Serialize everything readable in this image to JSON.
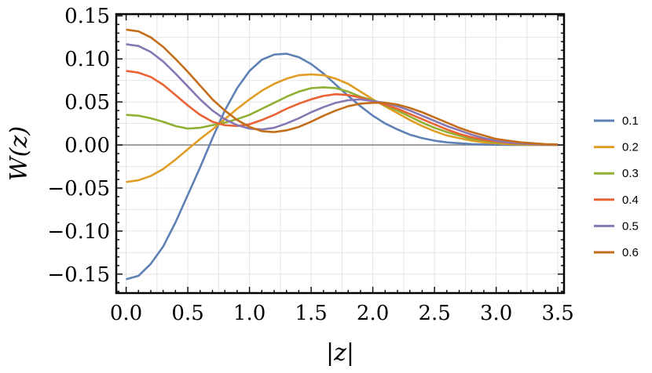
{
  "chart_data": {
    "type": "line",
    "title": "",
    "xlabel": "|z|",
    "ylabel": "W(z)",
    "xlim": [
      -0.08,
      3.55
    ],
    "ylim": [
      -0.172,
      0.152
    ],
    "x_ticks": [
      {
        "v": 0.0,
        "label": "0.0"
      },
      {
        "v": 0.5,
        "label": "0.5"
      },
      {
        "v": 1.0,
        "label": "1.0"
      },
      {
        "v": 1.5,
        "label": "1.5"
      },
      {
        "v": 2.0,
        "label": "2.0"
      },
      {
        "v": 2.5,
        "label": "2.5"
      },
      {
        "v": 3.0,
        "label": "3.0"
      },
      {
        "v": 3.5,
        "label": "3.5"
      }
    ],
    "y_ticks": [
      {
        "v": 0.15,
        "label": "0.15"
      },
      {
        "v": 0.1,
        "label": "0.10"
      },
      {
        "v": 0.05,
        "label": "0.05"
      },
      {
        "v": 0.0,
        "label": "0.00"
      },
      {
        "v": -0.05,
        "label": "−0.05"
      },
      {
        "v": -0.1,
        "label": "−0.10"
      },
      {
        "v": -0.15,
        "label": "−0.15"
      }
    ],
    "grid": true,
    "legend_position": "right",
    "x": [
      0,
      0.1,
      0.2,
      0.3,
      0.4,
      0.5,
      0.6,
      0.7,
      0.8,
      0.9,
      1.0,
      1.1,
      1.2,
      1.3,
      1.4,
      1.5,
      1.6,
      1.7,
      1.8,
      1.9,
      2.0,
      2.1,
      2.2,
      2.3,
      2.4,
      2.5,
      2.6,
      2.7,
      2.8,
      2.9,
      3.0,
      3.1,
      3.2,
      3.3,
      3.4,
      3.5
    ],
    "series": [
      {
        "name": "0.1",
        "color": "#5E81B5",
        "values": [
          -0.156,
          -0.152,
          -0.138,
          -0.118,
          -0.09,
          -0.058,
          -0.026,
          0.008,
          0.04,
          0.066,
          0.086,
          0.099,
          0.105,
          0.106,
          0.102,
          0.094,
          0.083,
          0.07,
          0.057,
          0.045,
          0.034,
          0.025,
          0.018,
          0.012,
          0.008,
          0.005,
          0.003,
          0.002,
          0.001,
          0.0005,
          0.0002,
          0.0001,
          0,
          0,
          0,
          0
        ]
      },
      {
        "name": "0.2",
        "color": "#E19C24",
        "values": [
          -0.043,
          -0.041,
          -0.036,
          -0.028,
          -0.017,
          -0.005,
          0.007,
          0.018,
          0.03,
          0.042,
          0.053,
          0.063,
          0.071,
          0.077,
          0.081,
          0.082,
          0.081,
          0.077,
          0.071,
          0.062,
          0.053,
          0.045,
          0.037,
          0.029,
          0.022,
          0.016,
          0.011,
          0.008,
          0.005,
          0.003,
          0.002,
          0.001,
          0.0005,
          0.0002,
          0.0001,
          0
        ]
      },
      {
        "name": "0.3",
        "color": "#8FB032",
        "values": [
          0.035,
          0.034,
          0.031,
          0.027,
          0.022,
          0.019,
          0.02,
          0.023,
          0.026,
          0.03,
          0.035,
          0.042,
          0.049,
          0.056,
          0.062,
          0.066,
          0.067,
          0.066,
          0.062,
          0.056,
          0.052,
          0.046,
          0.04,
          0.033,
          0.026,
          0.02,
          0.015,
          0.011,
          0.007,
          0.005,
          0.003,
          0.002,
          0.001,
          0.0007,
          0.0003,
          0.0001
        ]
      },
      {
        "name": "0.4",
        "color": "#EB6235",
        "values": [
          0.086,
          0.084,
          0.079,
          0.07,
          0.058,
          0.046,
          0.035,
          0.027,
          0.023,
          0.022,
          0.024,
          0.029,
          0.035,
          0.042,
          0.048,
          0.053,
          0.057,
          0.059,
          0.058,
          0.055,
          0.051,
          0.047,
          0.042,
          0.036,
          0.03,
          0.024,
          0.018,
          0.013,
          0.009,
          0.006,
          0.004,
          0.0025,
          0.0015,
          0.0008,
          0.0004,
          0.0002
        ]
      },
      {
        "name": "0.5",
        "color": "#8778B3",
        "values": [
          0.117,
          0.115,
          0.108,
          0.097,
          0.083,
          0.068,
          0.053,
          0.04,
          0.03,
          0.023,
          0.019,
          0.018,
          0.02,
          0.025,
          0.031,
          0.038,
          0.044,
          0.049,
          0.052,
          0.053,
          0.051,
          0.049,
          0.045,
          0.04,
          0.034,
          0.028,
          0.022,
          0.017,
          0.012,
          0.008,
          0.005,
          0.003,
          0.002,
          0.001,
          0.0006,
          0.0003
        ]
      },
      {
        "name": "0.6",
        "color": "#C56E1A",
        "values": [
          0.134,
          0.132,
          0.125,
          0.114,
          0.1,
          0.085,
          0.069,
          0.053,
          0.04,
          0.029,
          0.021,
          0.016,
          0.015,
          0.017,
          0.021,
          0.027,
          0.034,
          0.04,
          0.045,
          0.048,
          0.049,
          0.049,
          0.047,
          0.043,
          0.038,
          0.032,
          0.026,
          0.02,
          0.015,
          0.011,
          0.007,
          0.005,
          0.003,
          0.002,
          0.001,
          0.0006
        ]
      }
    ]
  }
}
